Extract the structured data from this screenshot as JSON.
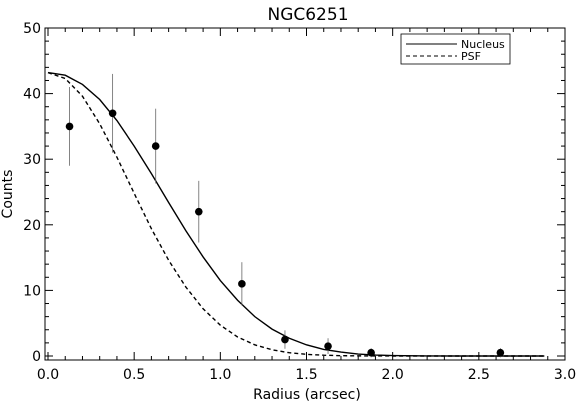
{
  "chart_data": {
    "type": "scatter",
    "title": "NGC6251",
    "xlabel": "Radius (arcsec)",
    "ylabel": "Counts",
    "xlim": [
      0.0,
      3.0
    ],
    "ylim": [
      0,
      50
    ],
    "xticks": [
      "0.0",
      "0.5",
      "1.0",
      "1.5",
      "2.0",
      "2.5",
      "3.0"
    ],
    "yticks": [
      "0",
      "10",
      "20",
      "30",
      "40",
      "50"
    ],
    "grid": false,
    "legend_position": "top-right",
    "legend": [
      {
        "label": "Nucleus",
        "style": "solid"
      },
      {
        "label": "PSF",
        "style": "dashed"
      }
    ],
    "points": [
      {
        "x": 0.125,
        "y": 35.0,
        "err": 6.0
      },
      {
        "x": 0.375,
        "y": 37.0,
        "err": 6.0
      },
      {
        "x": 0.625,
        "y": 32.0,
        "err": 5.7
      },
      {
        "x": 0.875,
        "y": 22.0,
        "err": 4.7
      },
      {
        "x": 1.125,
        "y": 11.0,
        "err": 3.3
      },
      {
        "x": 1.375,
        "y": 2.5,
        "err": 1.4
      },
      {
        "x": 1.625,
        "y": 1.5,
        "err": 1.2
      },
      {
        "x": 1.875,
        "y": 0.5,
        "err": 0.7
      },
      {
        "x": 2.625,
        "y": 0.5,
        "err": 0.7
      }
    ],
    "series": [
      {
        "name": "Nucleus",
        "x": [
          0.0,
          0.1,
          0.2,
          0.3,
          0.4,
          0.5,
          0.6,
          0.7,
          0.8,
          0.9,
          1.0,
          1.1,
          1.2,
          1.3,
          1.4,
          1.5,
          1.6,
          1.7,
          1.8,
          1.9,
          2.0,
          2.2,
          2.4,
          2.6,
          2.8,
          2.88
        ],
        "y": [
          43.2,
          42.8,
          41.4,
          39.1,
          35.9,
          32.0,
          27.8,
          23.4,
          19.1,
          15.1,
          11.5,
          8.5,
          6.0,
          4.1,
          2.7,
          1.7,
          1.0,
          0.6,
          0.3,
          0.15,
          0.07,
          0.01,
          0.0,
          0.0,
          0.0,
          0.0
        ]
      },
      {
        "name": "PSF",
        "x": [
          0.0,
          0.1,
          0.2,
          0.3,
          0.4,
          0.5,
          0.6,
          0.7,
          0.8,
          0.9,
          1.0,
          1.1,
          1.2,
          1.3,
          1.4,
          1.5,
          1.6,
          1.7,
          1.8,
          1.9,
          2.0,
          2.2,
          2.4,
          2.6,
          2.8,
          2.88
        ],
        "y": [
          43.2,
          42.3,
          39.6,
          35.4,
          30.3,
          24.8,
          19.4,
          14.6,
          10.5,
          7.2,
          4.7,
          2.9,
          1.7,
          0.95,
          0.5,
          0.25,
          0.12,
          0.05,
          0.02,
          0.01,
          0.0,
          0.0,
          0.0,
          0.0,
          0.0,
          0.0
        ]
      }
    ]
  }
}
